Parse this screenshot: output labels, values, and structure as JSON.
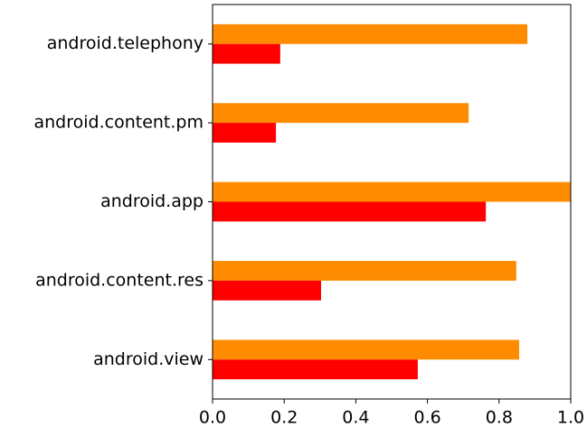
{
  "chart_data": {
    "type": "barh",
    "categories": [
      "android.telephony",
      "android.content.pm",
      "android.app",
      "android.content.res",
      "android.view"
    ],
    "series": [
      {
        "color": "#ff8c00",
        "values": [
          0.879,
          0.715,
          1.0,
          0.848,
          0.856
        ]
      },
      {
        "color": "#ff0000",
        "values": [
          0.189,
          0.177,
          0.763,
          0.303,
          0.573
        ]
      }
    ],
    "xlim": [
      0,
      1
    ],
    "xticks": [
      {
        "value": 0,
        "label": "0.0"
      },
      0.2,
      0.4,
      0.6,
      0.8,
      {
        "value": 1,
        "label": "1.0"
      }
    ]
  }
}
